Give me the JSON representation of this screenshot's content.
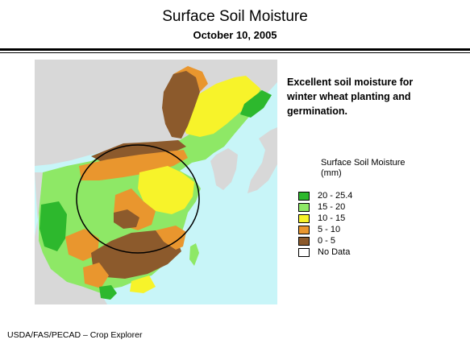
{
  "header": {
    "title": "Surface Soil Moisture",
    "date": "October 10, 2005"
  },
  "annotation": {
    "lines": [
      "Excellent soil moisture for",
      "winter wheat planting and",
      "germination."
    ]
  },
  "legend": {
    "title_lines": [
      "Surface Soil Moisture",
      "(mm)"
    ],
    "classes": [
      {
        "label": "20 - 25.4",
        "color": "#2db82d"
      },
      {
        "label": "15 - 20",
        "color": "#8ee866"
      },
      {
        "label": "10 - 15",
        "color": "#f7f32a"
      },
      {
        "label": "5 - 10",
        "color": "#e9962e"
      },
      {
        "label": "0 - 5",
        "color": "#8c5a2c"
      },
      {
        "label": "No Data",
        "color": "#ffffff"
      }
    ]
  },
  "map": {
    "sea_color": "#c8f5f8",
    "land_color": "#d8d8d8"
  },
  "footer": {
    "credit": "USDA/FAS/PECAD – Crop Explorer"
  }
}
